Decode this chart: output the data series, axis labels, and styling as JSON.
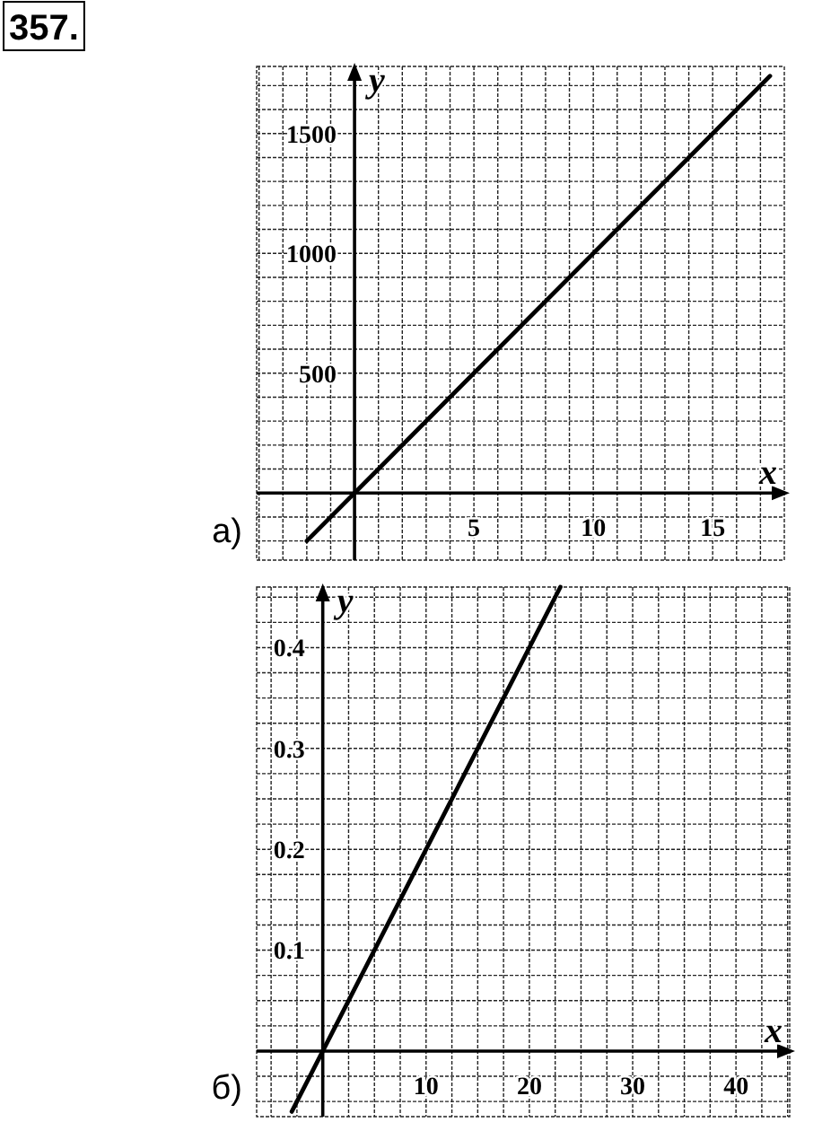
{
  "chart_data": [
    {
      "type": "line",
      "title": "а)",
      "xlabel": "x",
      "ylabel": "y",
      "annotations": [
        "357."
      ],
      "xlim": [
        -4.1,
        18
      ],
      "ylim": [
        -280,
        1780
      ],
      "xticks": [
        {
          "value": -4,
          "label": null
        },
        {
          "value": -3,
          "label": null
        },
        {
          "value": -2,
          "label": null
        },
        {
          "value": -1,
          "label": null
        },
        {
          "value": 0,
          "label": null
        },
        {
          "value": 1,
          "label": null
        },
        {
          "value": 2,
          "label": null
        },
        {
          "value": 3,
          "label": null
        },
        {
          "value": 4,
          "label": null
        },
        5,
        {
          "value": 6,
          "label": null
        },
        {
          "value": 7,
          "label": null
        },
        {
          "value": 8,
          "label": null
        },
        {
          "value": 9,
          "label": null
        },
        10,
        {
          "value": 11,
          "label": null
        },
        {
          "value": 12,
          "label": null
        },
        {
          "value": 13,
          "label": null
        },
        {
          "value": 14,
          "label": null
        },
        15,
        {
          "value": 16,
          "label": null
        },
        {
          "value": 17,
          "label": null
        }
      ],
      "yticks": [
        {
          "value": -200,
          "label": null
        },
        {
          "value": -100,
          "label": null
        },
        {
          "value": 0,
          "label": null
        },
        {
          "value": 100,
          "label": null
        },
        {
          "value": 200,
          "label": null
        },
        {
          "value": 300,
          "label": null
        },
        {
          "value": 400,
          "label": null
        },
        500,
        {
          "value": 600,
          "label": null
        },
        {
          "value": 700,
          "label": null
        },
        {
          "value": 800,
          "label": null
        },
        {
          "value": 900,
          "label": null
        },
        1000,
        {
          "value": 1100,
          "label": null
        },
        {
          "value": 1200,
          "label": null
        },
        {
          "value": 1300,
          "label": null
        },
        {
          "value": 1400,
          "label": null
        },
        1500,
        {
          "value": 1600,
          "label": null
        },
        {
          "value": 1700,
          "label": null
        }
      ],
      "grid": true,
      "series": [
        {
          "color": "#000000",
          "x": [
            -2,
            17.4
          ],
          "values": [
            -200,
            1740
          ]
        }
      ]
    },
    {
      "type": "line",
      "title": "б)",
      "xlabel": "x",
      "ylabel": "y",
      "xlim": [
        -6.4,
        45.2
      ],
      "ylim": [
        -0.065,
        0.46
      ],
      "xticks": [
        {
          "value": -5,
          "label": null
        },
        {
          "value": -2.5,
          "label": null
        },
        {
          "value": 0,
          "label": null
        },
        {
          "value": 2.5,
          "label": null
        },
        {
          "value": 5,
          "label": null
        },
        {
          "value": 7.5,
          "label": null
        },
        10,
        {
          "value": 12.5,
          "label": null
        },
        {
          "value": 15,
          "label": null
        },
        {
          "value": 17.5,
          "label": null
        },
        20,
        {
          "value": 22.5,
          "label": null
        },
        {
          "value": 25,
          "label": null
        },
        {
          "value": 27.5,
          "label": null
        },
        30,
        {
          "value": 32.5,
          "label": null
        },
        {
          "value": 35,
          "label": null
        },
        {
          "value": 37.5,
          "label": null
        },
        40,
        {
          "value": 42.5,
          "label": null
        },
        {
          "value": 45,
          "label": null
        }
      ],
      "yticks": [
        {
          "value": -0.05,
          "label": null
        },
        {
          "value": -0.025,
          "label": null
        },
        {
          "value": 0,
          "label": null
        },
        {
          "value": 0.025,
          "label": null
        },
        {
          "value": 0.05,
          "label": null
        },
        {
          "value": 0.075,
          "label": null
        },
        0.1,
        {
          "value": 0.125,
          "label": null
        },
        {
          "value": 0.15,
          "label": null
        },
        {
          "value": 0.175,
          "label": null
        },
        0.2,
        {
          "value": 0.225,
          "label": null
        },
        {
          "value": 0.25,
          "label": null
        },
        {
          "value": 0.275,
          "label": null
        },
        0.3,
        {
          "value": 0.325,
          "label": null
        },
        {
          "value": 0.35,
          "label": null
        },
        {
          "value": 0.375,
          "label": null
        },
        0.4,
        {
          "value": 0.425,
          "label": null
        },
        {
          "value": 0.45,
          "label": null
        }
      ],
      "grid": true,
      "series": [
        {
          "color": "#000000",
          "x": [
            -3,
            23
          ],
          "values": [
            -0.06,
            0.46
          ]
        }
      ]
    }
  ]
}
